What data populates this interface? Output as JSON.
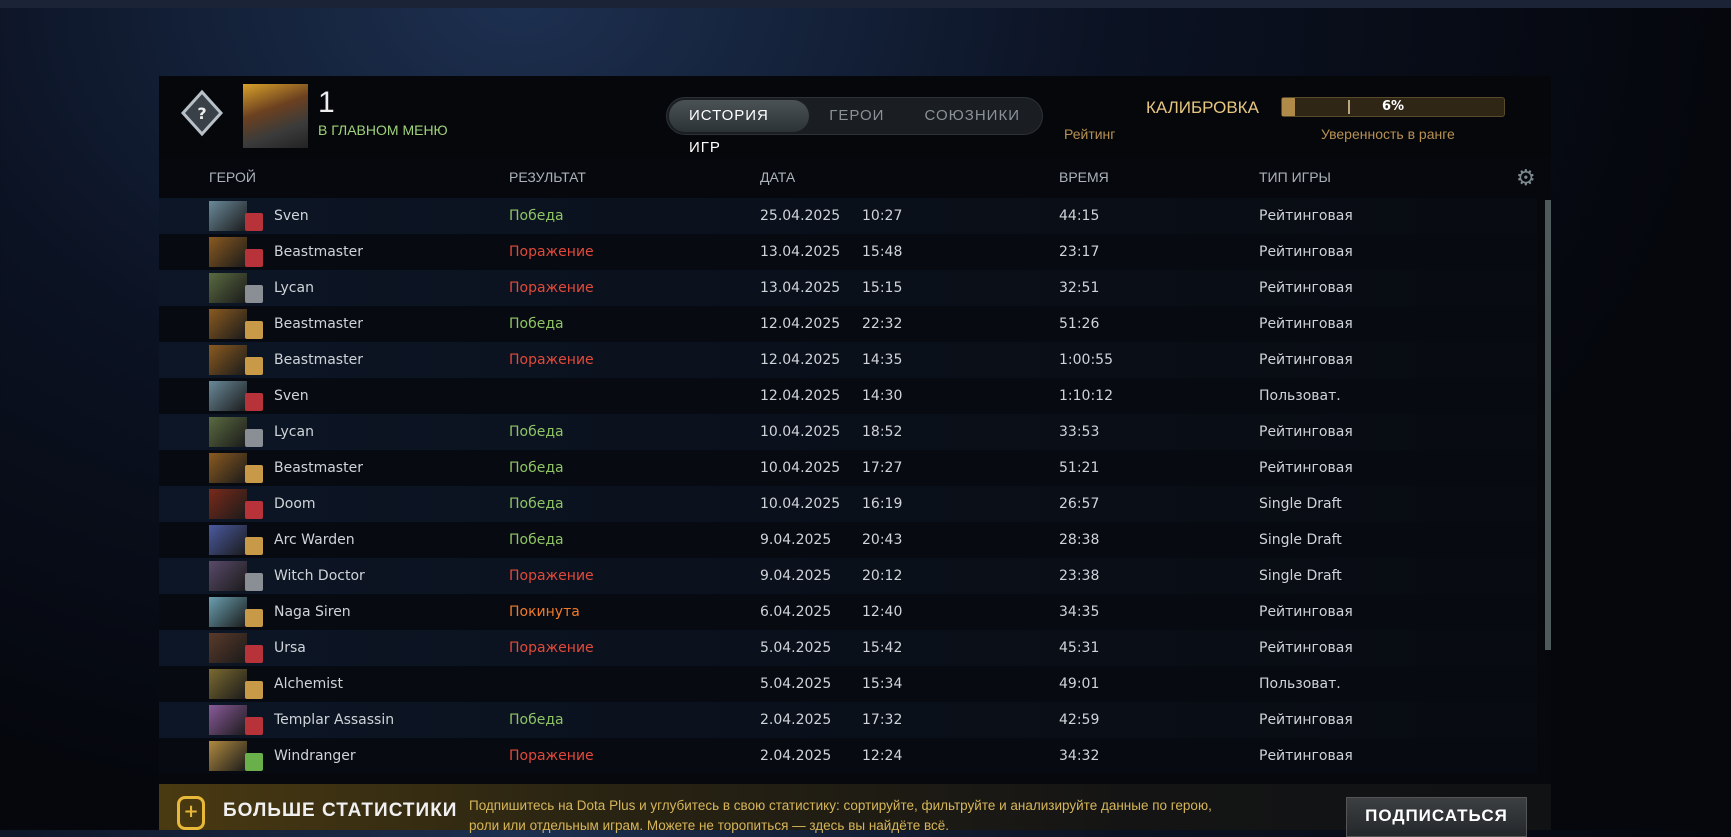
{
  "player": {
    "name": "1",
    "status": "В ГЛАВНОМ МЕНЮ"
  },
  "tabs": [
    {
      "label": "ИСТОРИЯ ИГР",
      "active": true
    },
    {
      "label": "ГЕРОИ",
      "active": false
    },
    {
      "label": "СОЮЗНИКИ",
      "active": false
    }
  ],
  "calibration": {
    "label": "КАЛИБРОВКА",
    "percent": 6,
    "percent_label": "6%",
    "rating_label": "Рейтинг",
    "confidence_label": "Уверенность в ранге"
  },
  "columns": {
    "hero": "ГЕРОЙ",
    "result": "РЕЗУЛЬТАТ",
    "date": "ДАТА",
    "duration": "ВРЕМЯ",
    "type": "ТИП ИГРЫ"
  },
  "matches": [
    {
      "hero": "Sven",
      "result": "Победа",
      "r": "win",
      "date": "25.04.2025",
      "time": "10:27",
      "duration": "44:15",
      "type": "Рейтинговая",
      "c": "#6a8a9a",
      "rc": "#b8323a"
    },
    {
      "hero": "Beastmaster",
      "result": "Поражение",
      "r": "loss",
      "date": "13.04.2025",
      "time": "15:48",
      "duration": "23:17",
      "type": "Рейтинговая",
      "c": "#8a5a20",
      "rc": "#b8323a"
    },
    {
      "hero": "Lycan",
      "result": "Поражение",
      "r": "loss",
      "date": "13.04.2025",
      "time": "15:15",
      "duration": "32:51",
      "type": "Рейтинговая",
      "c": "#5a6a40",
      "rc": "#8a8f96"
    },
    {
      "hero": "Beastmaster",
      "result": "Победа",
      "r": "win",
      "date": "12.04.2025",
      "time": "22:32",
      "duration": "51:26",
      "type": "Рейтинговая",
      "c": "#8a5a20",
      "rc": "#c89a48"
    },
    {
      "hero": "Beastmaster",
      "result": "Поражение",
      "r": "loss",
      "date": "12.04.2025",
      "time": "14:35",
      "duration": "1:00:55",
      "type": "Рейтинговая",
      "c": "#8a5a20",
      "rc": "#c89a48"
    },
    {
      "hero": "Sven",
      "result": "",
      "r": "",
      "date": "12.04.2025",
      "time": "14:30",
      "duration": "1:10:12",
      "type": "Пользоват.",
      "c": "#6a8a9a",
      "rc": "#b8323a"
    },
    {
      "hero": "Lycan",
      "result": "Победа",
      "r": "win",
      "date": "10.04.2025",
      "time": "18:52",
      "duration": "33:53",
      "type": "Рейтинговая",
      "c": "#5a6a40",
      "rc": "#8a8f96"
    },
    {
      "hero": "Beastmaster",
      "result": "Победа",
      "r": "win",
      "date": "10.04.2025",
      "time": "17:27",
      "duration": "51:21",
      "type": "Рейтинговая",
      "c": "#8a5a20",
      "rc": "#c89a48"
    },
    {
      "hero": "Doom",
      "result": "Победа",
      "r": "win",
      "date": "10.04.2025",
      "time": "16:19",
      "duration": "26:57",
      "type": "Single Draft",
      "c": "#7a2a1a",
      "rc": "#b8323a"
    },
    {
      "hero": "Arc Warden",
      "result": "Победа",
      "r": "win",
      "date": "9.04.2025",
      "time": "20:43",
      "duration": "28:38",
      "type": "Single Draft",
      "c": "#4a5aa0",
      "rc": "#c89a48"
    },
    {
      "hero": "Witch Doctor",
      "result": "Поражение",
      "r": "loss",
      "date": "9.04.2025",
      "time": "20:12",
      "duration": "23:38",
      "type": "Single Draft",
      "c": "#5a4a6a",
      "rc": "#8a8f96"
    },
    {
      "hero": "Naga Siren",
      "result": "Покинута",
      "r": "aband",
      "date": "6.04.2025",
      "time": "12:40",
      "duration": "34:35",
      "type": "Рейтинговая",
      "c": "#6aa0b0",
      "rc": "#c89a48"
    },
    {
      "hero": "Ursa",
      "result": "Поражение",
      "r": "loss",
      "date": "5.04.2025",
      "time": "15:42",
      "duration": "45:31",
      "type": "Рейтинговая",
      "c": "#5a3a2a",
      "rc": "#b8323a"
    },
    {
      "hero": "Alchemist",
      "result": "",
      "r": "",
      "date": "5.04.2025",
      "time": "15:34",
      "duration": "49:01",
      "type": "Пользоват.",
      "c": "#7a6a30",
      "rc": "#c89a48"
    },
    {
      "hero": "Templar Assassin",
      "result": "Победа",
      "r": "win",
      "date": "2.04.2025",
      "time": "17:32",
      "duration": "42:59",
      "type": "Рейтинговая",
      "c": "#8a5a9a",
      "rc": "#b8323a"
    },
    {
      "hero": "Windranger",
      "result": "Поражение",
      "r": "loss",
      "date": "2.04.2025",
      "time": "12:24",
      "duration": "34:32",
      "type": "Рейтинговая",
      "c": "#b08a40",
      "rc": "#6ab04a"
    }
  ],
  "promo": {
    "title": "БОЛЬШЕ СТАТИСТИКИ",
    "text": "Подпишитесь на Dota Plus и углубитесь в свою статистику: сортируйте, фильтруйте и анализируйте данные по герою, роли или отдельным играм. Можете не торопиться — здесь вы найдёте всё.",
    "button": "ПОДПИСАТЬСЯ"
  }
}
